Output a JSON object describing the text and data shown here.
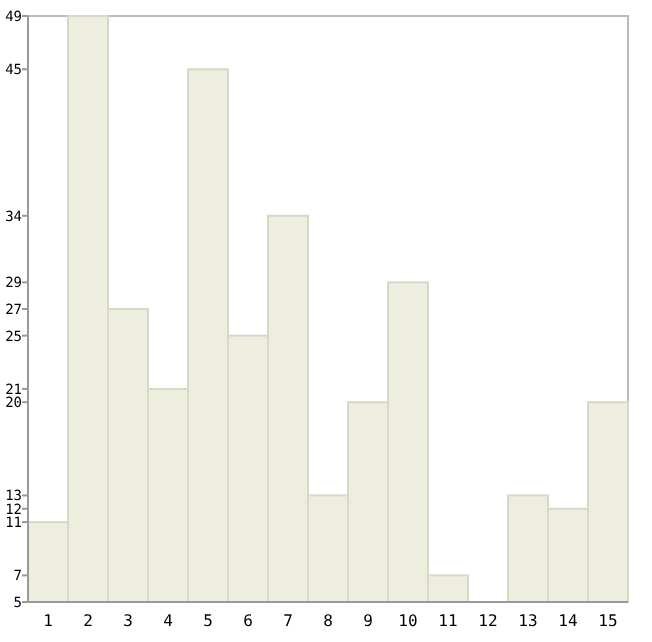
{
  "chart_data": {
    "type": "bar",
    "categories": [
      "1",
      "2",
      "3",
      "4",
      "5",
      "6",
      "7",
      "8",
      "9",
      "10",
      "11",
      "12",
      "13",
      "14",
      "15"
    ],
    "values": [
      11,
      49,
      27,
      21,
      45,
      25,
      34,
      13,
      20,
      29,
      7,
      5,
      13,
      12,
      20
    ],
    "color": "#eeeedf",
    "ylim": [
      5,
      49
    ],
    "yticks": [
      5,
      7,
      11,
      12,
      13,
      20,
      21,
      25,
      27,
      29,
      34,
      45,
      49
    ],
    "grid": false
  }
}
